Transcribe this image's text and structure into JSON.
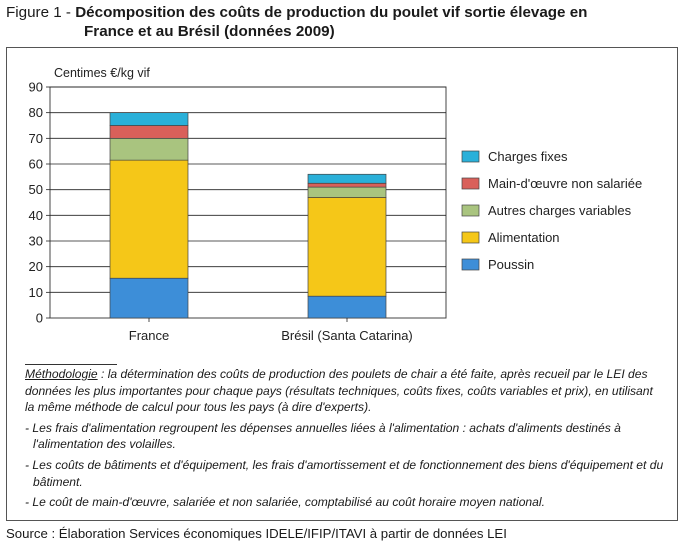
{
  "figure": {
    "label": "Figure 1 - ",
    "title_line1": "Décomposition des coûts de production du poulet vif sortie élevage en",
    "title_line2": "France et au Brésil (données 2009)"
  },
  "chart_data": {
    "type": "bar",
    "stacked": true,
    "ylabel": "Centimes €/kg vif",
    "ylim": [
      0,
      90
    ],
    "yticks": [
      0,
      10,
      20,
      30,
      40,
      50,
      60,
      70,
      80,
      90
    ],
    "grid": true,
    "legend_position": "right",
    "categories": [
      "France",
      "Brésil (Santa Catarina)"
    ],
    "series": [
      {
        "name": "Poussin",
        "color": "#3d8ed8",
        "values": [
          15.5,
          8.5
        ]
      },
      {
        "name": "Alimentation",
        "color": "#f5c718",
        "values": [
          46.0,
          38.5
        ]
      },
      {
        "name": "Autres charges variables",
        "color": "#a9c47f",
        "values": [
          8.5,
          4.0
        ]
      },
      {
        "name": "Main-d'œuvre non salariée",
        "color": "#d9605a",
        "values": [
          5.0,
          1.5
        ]
      },
      {
        "name": "Charges fixes",
        "color": "#2ab0d9",
        "values": [
          5.0,
          3.5
        ]
      }
    ]
  },
  "notes": {
    "methodology_label": "Méthodologie",
    "methodology_text": " : la détermination des coûts de production des poulets de chair a été faite, après recueil par le LEI des données les plus importantes pour chaque pays (résultats techniques, coûts fixes, coûts variables et prix), en utilisant la même méthode de calcul pour tous les pays (à dire d'experts).",
    "item1": "- Les frais d'alimentation regroupent les dépenses annuelles liées à l'alimentation : achats d'aliments destinés à l'alimentation des volailles.",
    "item2": "- Les coûts de bâtiments et d'équipement, les frais d'amortissement et de fonctionnement des biens d'équipement et du bâtiment.",
    "item3": "- Le coût de main-d'œuvre, salariée et non salariée, comptabilisé au coût horaire moyen national."
  },
  "source": "Source : Élaboration Services économiques IDELE/IFIP/ITAVI à partir de données LEI"
}
